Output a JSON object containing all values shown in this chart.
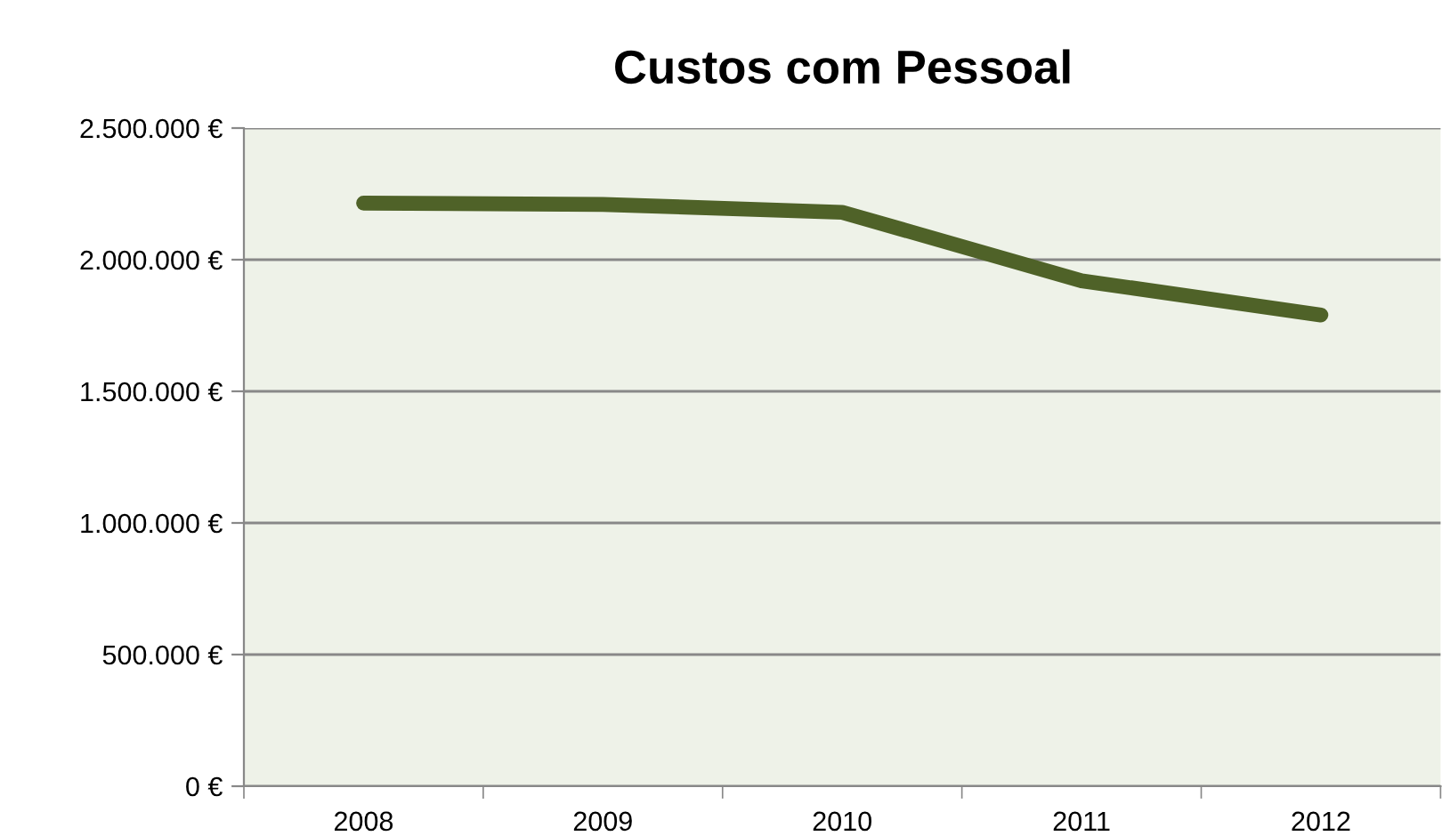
{
  "chart_data": {
    "type": "line",
    "title": "Custos com Pessoal",
    "categories": [
      "2008",
      "2009",
      "2010",
      "2011",
      "2012"
    ],
    "series": [
      {
        "color": "#4f6228",
        "values": [
          2215000,
          2210000,
          2180000,
          1920000,
          1790000
        ]
      }
    ],
    "ylim": [
      0,
      2500000
    ],
    "yticks": [
      {
        "value": 0,
        "label": "0 €"
      },
      {
        "value": 500000,
        "label": "500.000 €"
      },
      {
        "value": 1000000,
        "label": "1.000.000 €"
      },
      {
        "value": 1500000,
        "label": "1.500.000 €"
      },
      {
        "value": 2000000,
        "label": "2.000.000 €"
      },
      {
        "value": 2500000,
        "label": "2.500.000 €"
      }
    ],
    "grid": "y",
    "marker": "none",
    "line_style": "solid"
  }
}
